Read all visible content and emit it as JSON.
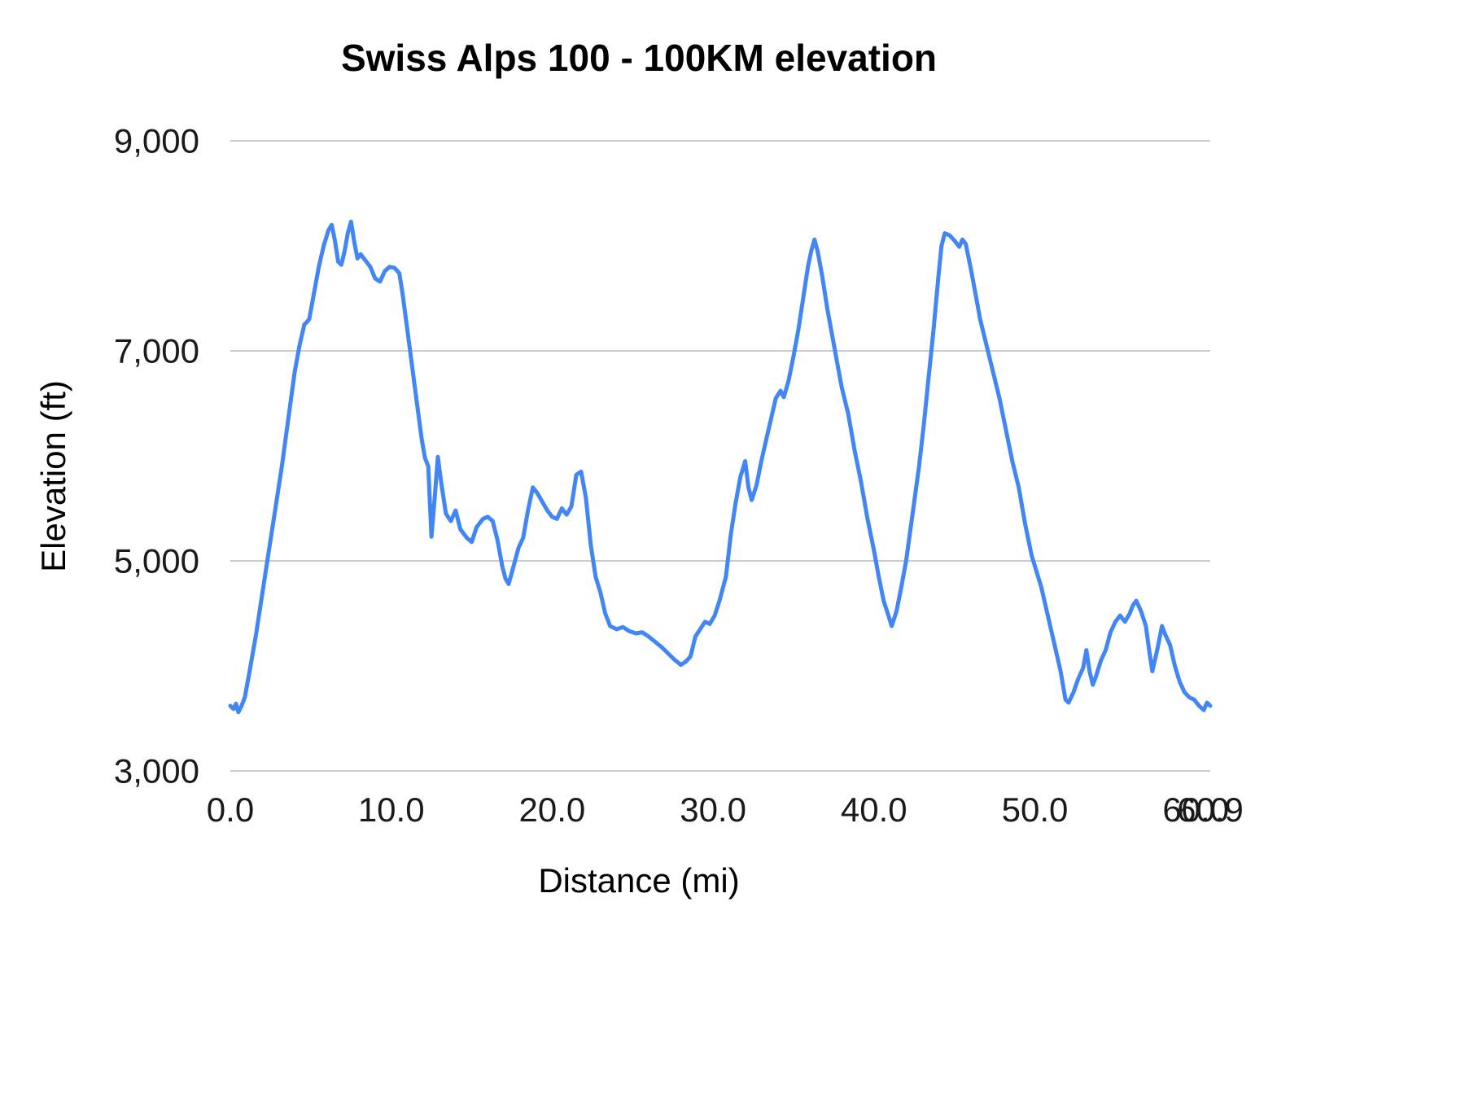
{
  "chart_data": {
    "type": "line",
    "title": "Swiss Alps 100 - 100KM elevation",
    "xlabel": "Distance (mi)",
    "ylabel": "Elevation (ft)",
    "xlim": [
      0,
      60.9
    ],
    "ylim": [
      3000,
      9000
    ],
    "grid": true,
    "legend_position": "none",
    "line_color": "#4285f4",
    "gridline_color": "#cccccc",
    "xticks": [
      {
        "value": 0,
        "label": "0.0"
      },
      {
        "value": 10,
        "label": "10.0"
      },
      {
        "value": 20,
        "label": "20.0"
      },
      {
        "value": 30,
        "label": "30.0"
      },
      {
        "value": 40,
        "label": "40.0"
      },
      {
        "value": 50,
        "label": "50.0"
      },
      {
        "value": 60,
        "label": "60.0"
      },
      {
        "value": 60.9,
        "label": "60.9"
      }
    ],
    "yticks": [
      {
        "value": 3000,
        "label": "3,000"
      },
      {
        "value": 5000,
        "label": "5,000"
      },
      {
        "value": 7000,
        "label": "7,000"
      },
      {
        "value": 9000,
        "label": "9,000"
      }
    ],
    "series": [
      {
        "name": "Elevation",
        "points": [
          [
            0.0,
            3620
          ],
          [
            0.2,
            3590
          ],
          [
            0.35,
            3640
          ],
          [
            0.5,
            3560
          ],
          [
            0.7,
            3620
          ],
          [
            0.9,
            3700
          ],
          [
            1.2,
            3950
          ],
          [
            1.6,
            4300
          ],
          [
            2.0,
            4700
          ],
          [
            2.4,
            5100
          ],
          [
            2.8,
            5500
          ],
          [
            3.2,
            5900
          ],
          [
            3.6,
            6350
          ],
          [
            4.0,
            6800
          ],
          [
            4.3,
            7050
          ],
          [
            4.6,
            7250
          ],
          [
            4.9,
            7300
          ],
          [
            5.2,
            7550
          ],
          [
            5.5,
            7800
          ],
          [
            5.8,
            8000
          ],
          [
            6.1,
            8150
          ],
          [
            6.3,
            8200
          ],
          [
            6.5,
            8050
          ],
          [
            6.7,
            7850
          ],
          [
            6.9,
            7820
          ],
          [
            7.1,
            7950
          ],
          [
            7.3,
            8120
          ],
          [
            7.5,
            8230
          ],
          [
            7.7,
            8040
          ],
          [
            7.9,
            7880
          ],
          [
            8.1,
            7920
          ],
          [
            8.4,
            7860
          ],
          [
            8.7,
            7800
          ],
          [
            9.0,
            7690
          ],
          [
            9.3,
            7660
          ],
          [
            9.6,
            7760
          ],
          [
            9.9,
            7800
          ],
          [
            10.2,
            7790
          ],
          [
            10.5,
            7740
          ],
          [
            10.7,
            7550
          ],
          [
            11.0,
            7200
          ],
          [
            11.3,
            6850
          ],
          [
            11.6,
            6500
          ],
          [
            11.9,
            6150
          ],
          [
            12.1,
            5980
          ],
          [
            12.3,
            5900
          ],
          [
            12.5,
            5230
          ],
          [
            12.7,
            5600
          ],
          [
            12.9,
            5990
          ],
          [
            13.1,
            5750
          ],
          [
            13.4,
            5450
          ],
          [
            13.7,
            5380
          ],
          [
            14.0,
            5480
          ],
          [
            14.3,
            5300
          ],
          [
            14.7,
            5220
          ],
          [
            15.0,
            5180
          ],
          [
            15.3,
            5320
          ],
          [
            15.7,
            5400
          ],
          [
            16.0,
            5420
          ],
          [
            16.3,
            5380
          ],
          [
            16.6,
            5200
          ],
          [
            16.9,
            4950
          ],
          [
            17.1,
            4830
          ],
          [
            17.3,
            4780
          ],
          [
            17.6,
            4950
          ],
          [
            17.9,
            5120
          ],
          [
            18.2,
            5220
          ],
          [
            18.5,
            5480
          ],
          [
            18.8,
            5700
          ],
          [
            19.1,
            5640
          ],
          [
            19.4,
            5560
          ],
          [
            19.7,
            5480
          ],
          [
            20.0,
            5420
          ],
          [
            20.3,
            5400
          ],
          [
            20.6,
            5500
          ],
          [
            20.9,
            5440
          ],
          [
            21.2,
            5520
          ],
          [
            21.5,
            5820
          ],
          [
            21.8,
            5850
          ],
          [
            22.1,
            5600
          ],
          [
            22.4,
            5150
          ],
          [
            22.7,
            4850
          ],
          [
            23.0,
            4700
          ],
          [
            23.3,
            4500
          ],
          [
            23.6,
            4380
          ],
          [
            24.0,
            4350
          ],
          [
            24.4,
            4370
          ],
          [
            24.8,
            4330
          ],
          [
            25.2,
            4310
          ],
          [
            25.6,
            4320
          ],
          [
            26.0,
            4280
          ],
          [
            26.4,
            4230
          ],
          [
            26.8,
            4180
          ],
          [
            27.2,
            4120
          ],
          [
            27.6,
            4060
          ],
          [
            28.0,
            4010
          ],
          [
            28.3,
            4040
          ],
          [
            28.6,
            4090
          ],
          [
            28.9,
            4280
          ],
          [
            29.2,
            4350
          ],
          [
            29.5,
            4420
          ],
          [
            29.8,
            4400
          ],
          [
            30.1,
            4480
          ],
          [
            30.4,
            4620
          ],
          [
            30.8,
            4850
          ],
          [
            31.1,
            5250
          ],
          [
            31.4,
            5550
          ],
          [
            31.7,
            5800
          ],
          [
            32.0,
            5950
          ],
          [
            32.2,
            5700
          ],
          [
            32.4,
            5580
          ],
          [
            32.7,
            5720
          ],
          [
            33.0,
            5950
          ],
          [
            33.3,
            6150
          ],
          [
            33.6,
            6350
          ],
          [
            33.9,
            6550
          ],
          [
            34.2,
            6620
          ],
          [
            34.4,
            6560
          ],
          [
            34.7,
            6720
          ],
          [
            35.0,
            6950
          ],
          [
            35.3,
            7200
          ],
          [
            35.6,
            7500
          ],
          [
            35.9,
            7800
          ],
          [
            36.1,
            7950
          ],
          [
            36.3,
            8060
          ],
          [
            36.5,
            7950
          ],
          [
            36.8,
            7700
          ],
          [
            37.1,
            7400
          ],
          [
            37.4,
            7150
          ],
          [
            37.7,
            6900
          ],
          [
            38.0,
            6650
          ],
          [
            38.4,
            6400
          ],
          [
            38.8,
            6050
          ],
          [
            39.2,
            5750
          ],
          [
            39.6,
            5400
          ],
          [
            40.0,
            5100
          ],
          [
            40.3,
            4850
          ],
          [
            40.6,
            4620
          ],
          [
            40.9,
            4480
          ],
          [
            41.1,
            4380
          ],
          [
            41.4,
            4520
          ],
          [
            41.7,
            4750
          ],
          [
            42.0,
            5000
          ],
          [
            42.4,
            5450
          ],
          [
            42.8,
            5900
          ],
          [
            43.1,
            6300
          ],
          [
            43.4,
            6750
          ],
          [
            43.7,
            7200
          ],
          [
            44.0,
            7700
          ],
          [
            44.2,
            8000
          ],
          [
            44.4,
            8120
          ],
          [
            44.7,
            8100
          ],
          [
            45.0,
            8050
          ],
          [
            45.3,
            7990
          ],
          [
            45.5,
            8060
          ],
          [
            45.7,
            8020
          ],
          [
            46.0,
            7800
          ],
          [
            46.3,
            7550
          ],
          [
            46.6,
            7300
          ],
          [
            47.0,
            7050
          ],
          [
            47.4,
            6800
          ],
          [
            47.8,
            6550
          ],
          [
            48.2,
            6250
          ],
          [
            48.6,
            5950
          ],
          [
            49.0,
            5700
          ],
          [
            49.4,
            5350
          ],
          [
            49.8,
            5050
          ],
          [
            50.1,
            4900
          ],
          [
            50.4,
            4750
          ],
          [
            50.7,
            4550
          ],
          [
            51.0,
            4350
          ],
          [
            51.3,
            4150
          ],
          [
            51.6,
            3950
          ],
          [
            51.9,
            3680
          ],
          [
            52.1,
            3650
          ],
          [
            52.4,
            3750
          ],
          [
            52.7,
            3880
          ],
          [
            53.0,
            3980
          ],
          [
            53.2,
            4150
          ],
          [
            53.4,
            3950
          ],
          [
            53.6,
            3820
          ],
          [
            53.8,
            3900
          ],
          [
            54.1,
            4050
          ],
          [
            54.4,
            4150
          ],
          [
            54.7,
            4320
          ],
          [
            55.0,
            4420
          ],
          [
            55.3,
            4480
          ],
          [
            55.6,
            4420
          ],
          [
            55.9,
            4500
          ],
          [
            56.1,
            4580
          ],
          [
            56.3,
            4620
          ],
          [
            56.6,
            4520
          ],
          [
            56.9,
            4380
          ],
          [
            57.1,
            4150
          ],
          [
            57.3,
            3950
          ],
          [
            57.6,
            4150
          ],
          [
            57.9,
            4380
          ],
          [
            58.1,
            4300
          ],
          [
            58.4,
            4200
          ],
          [
            58.7,
            4000
          ],
          [
            59.0,
            3850
          ],
          [
            59.3,
            3750
          ],
          [
            59.6,
            3700
          ],
          [
            59.9,
            3680
          ],
          [
            60.2,
            3620
          ],
          [
            60.5,
            3580
          ],
          [
            60.7,
            3650
          ],
          [
            60.9,
            3620
          ]
        ]
      }
    ]
  }
}
